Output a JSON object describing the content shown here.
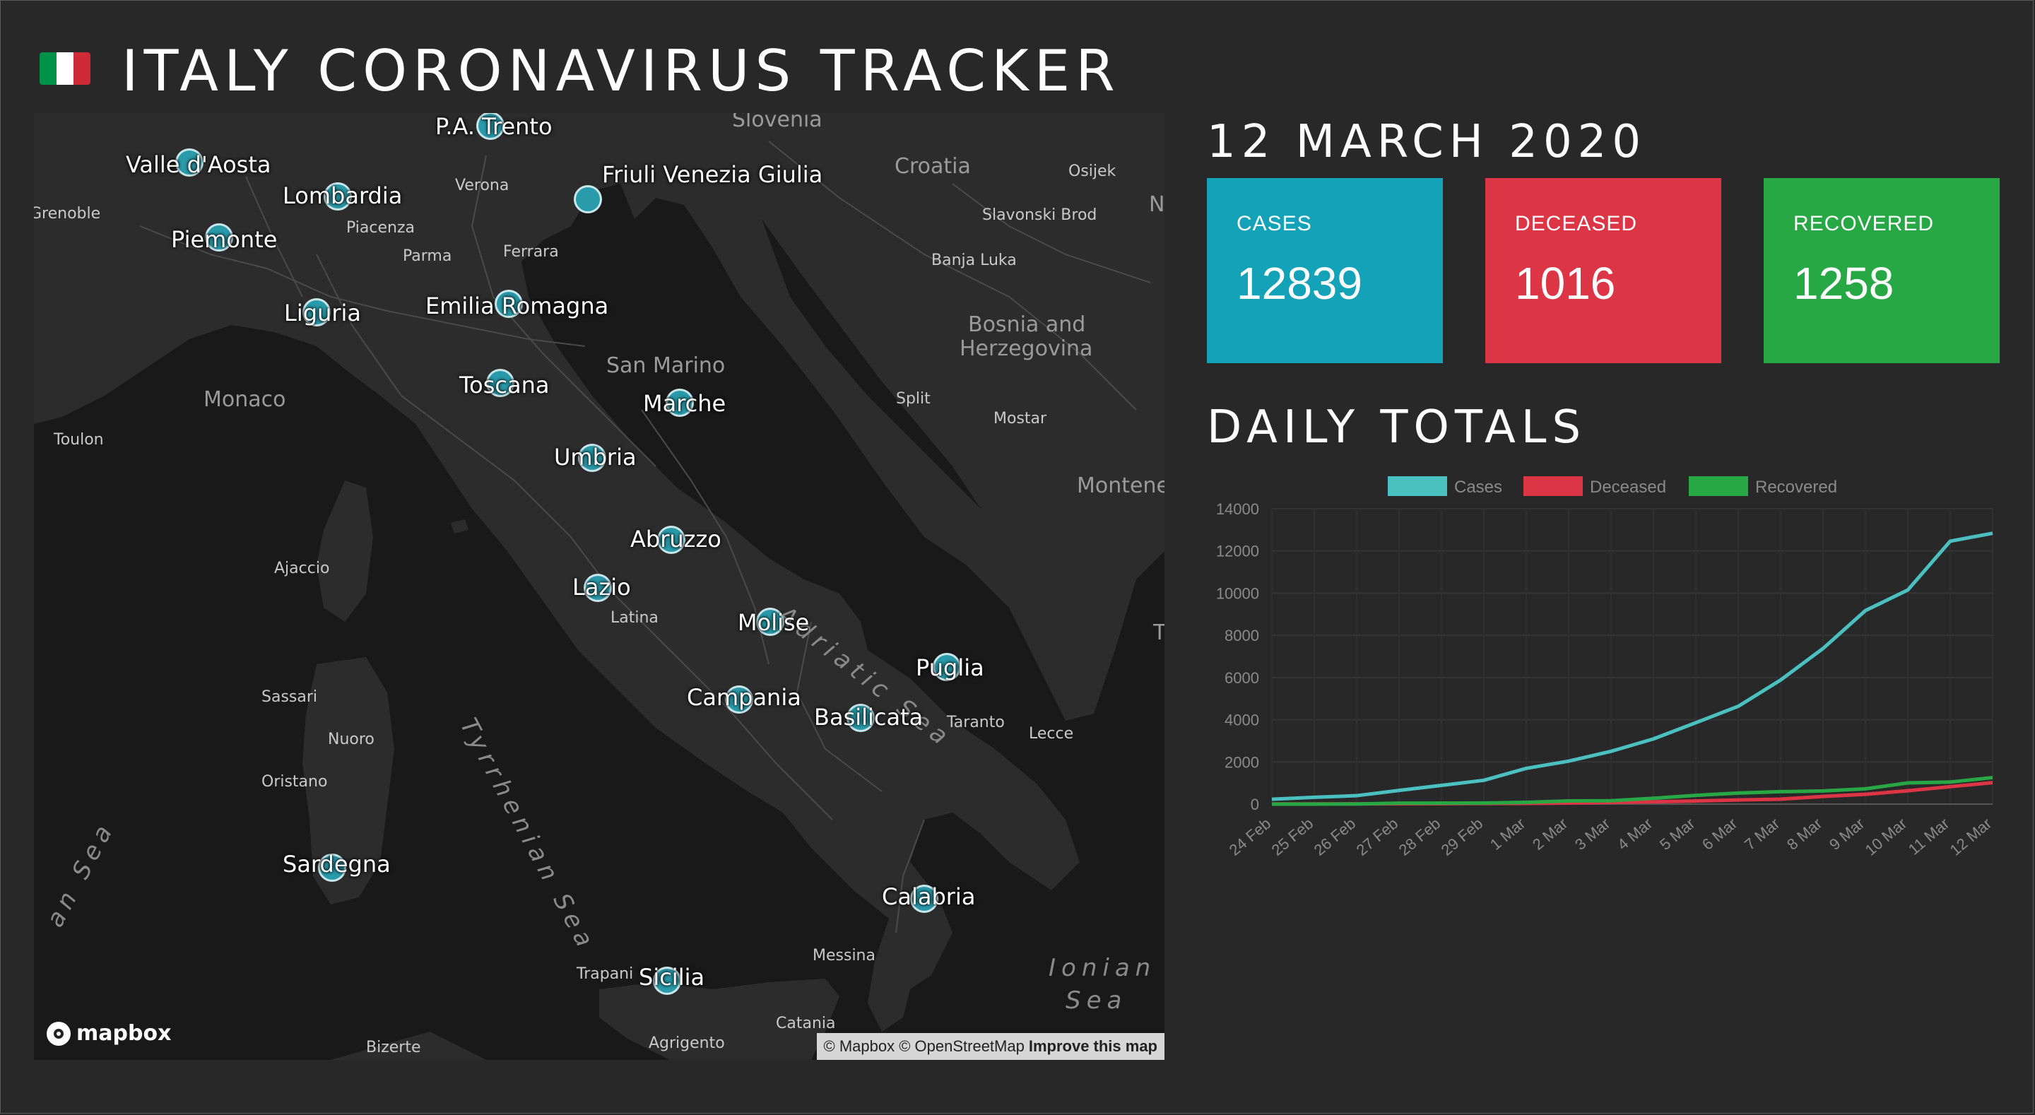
{
  "header": {
    "title": "ITALY CORONAVIRUS TRACKER",
    "flag_colors": [
      "#009246",
      "#ffffff",
      "#ce2b37"
    ]
  },
  "map": {
    "regions": [
      "Valle d'Aosta",
      "P.A. Trento",
      "Friuli Venezia Giulia",
      "Lombardia",
      "Piemonte",
      "Liguria",
      "Emilia Romagna",
      "Toscana",
      "Marche",
      "Umbria",
      "Abruzzo",
      "Lazio",
      "Molise",
      "Puglia",
      "Campania",
      "Basilicata",
      "Calabria",
      "Sardegna",
      "Sicilia"
    ],
    "cities": [
      "Grenoble",
      "Verona",
      "Piacenza",
      "Parma",
      "Ferrara",
      "Toulon",
      "Ajaccio",
      "Sassari",
      "Nuoro",
      "Oristano",
      "Latina",
      "Taranto",
      "Lecce",
      "Messina",
      "Trapani",
      "Catania",
      "Agrigento",
      "Bizerte",
      "Osijek",
      "Slavonski Brod",
      "Banja Luka",
      "Split",
      "Mostar"
    ],
    "countries": [
      "Slovenia",
      "Croatia",
      "Bosnia and",
      "Herzegovina",
      "San Marino",
      "Monaco",
      "Montene",
      "Ne",
      "T"
    ],
    "seas": [
      "Adriatic Sea",
      "Tyrrhenian Sea",
      "Ionian",
      "Sea",
      "an Sea"
    ],
    "logo_text": "mapbox",
    "attribution": "© Mapbox © OpenStreetMap",
    "improve_link": "Improve this map",
    "marker_color": "#2a9bab"
  },
  "summary": {
    "date": "12 MARCH 2020",
    "cases_label": "CASES",
    "cases_value": "12839",
    "deceased_label": "DECEASED",
    "deceased_value": "1016",
    "recovered_label": "RECOVERED",
    "recovered_value": "1258"
  },
  "daily": {
    "title": "DAILY TOTALS"
  },
  "chart_data": {
    "type": "line",
    "x": [
      "24 Feb",
      "25 Feb",
      "26 Feb",
      "27 Feb",
      "28 Feb",
      "29 Feb",
      "1 Mar",
      "2 Mar",
      "3 Mar",
      "4 Mar",
      "5 Mar",
      "6 Mar",
      "7 Mar",
      "8 Mar",
      "9 Mar",
      "10 Mar",
      "11 Mar",
      "12 Mar"
    ],
    "series": [
      {
        "name": "Cases",
        "color": "#4bc0c0",
        "values": [
          229,
          322,
          400,
          650,
          888,
          1128,
          1694,
          2036,
          2502,
          3089,
          3858,
          4636,
          5883,
          7375,
          9172,
          10149,
          12462,
          12839
        ]
      },
      {
        "name": "Deceased",
        "color": "#dc3545",
        "values": [
          7,
          10,
          12,
          17,
          21,
          29,
          34,
          52,
          79,
          107,
          148,
          197,
          233,
          366,
          463,
          631,
          827,
          1016
        ]
      },
      {
        "name": "Recovered",
        "color": "#28a745",
        "values": [
          1,
          1,
          3,
          45,
          46,
          50,
          83,
          149,
          160,
          276,
          414,
          523,
          589,
          622,
          724,
          1004,
          1045,
          1258
        ]
      }
    ],
    "ylim": [
      0,
      14000
    ],
    "yticks": [
      0,
      2000,
      4000,
      6000,
      8000,
      10000,
      12000,
      14000
    ],
    "legend": "top",
    "grid": true
  }
}
